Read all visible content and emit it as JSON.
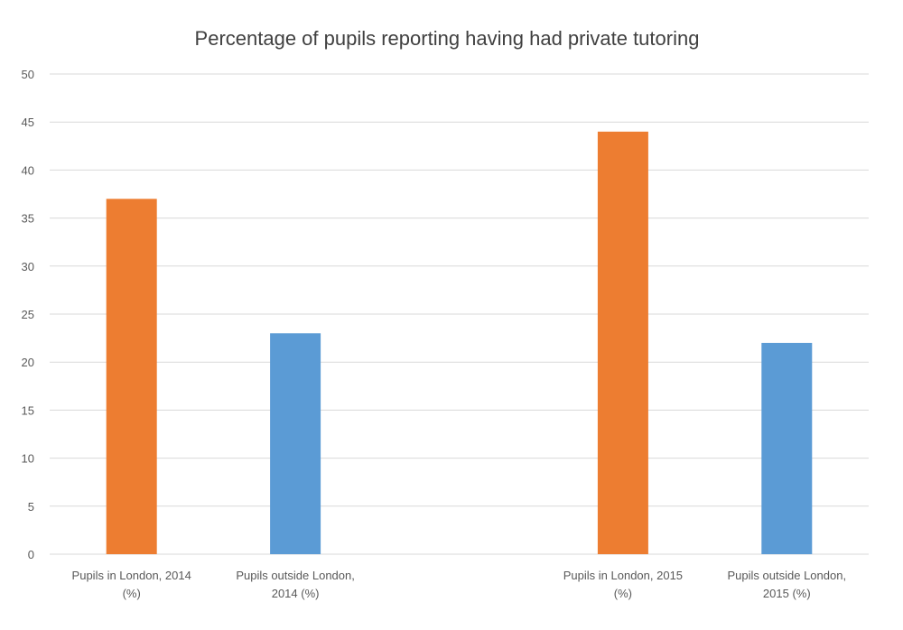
{
  "chart_data": {
    "type": "bar",
    "title": "Percentage of pupils reporting having had private tutoring",
    "xlabel": "",
    "ylabel": "",
    "ylim": [
      0,
      50
    ],
    "yticks": [
      0,
      5,
      10,
      15,
      20,
      25,
      30,
      35,
      40,
      45,
      50
    ],
    "grid": true,
    "legend": "none",
    "categories": [
      [
        "Pupils in London, 2014",
        "(%)"
      ],
      [
        "Pupils outside London,",
        "2014 (%)"
      ],
      [
        "",
        ""
      ],
      [
        "Pupils in London, 2015",
        "(%)"
      ],
      [
        "Pupils outside London,",
        "2015 (%)"
      ]
    ],
    "values": [
      37,
      23,
      null,
      44,
      22
    ],
    "colors": [
      "#ED7D31",
      "#5B9BD5",
      null,
      "#ED7D31",
      "#5B9BD5"
    ]
  }
}
